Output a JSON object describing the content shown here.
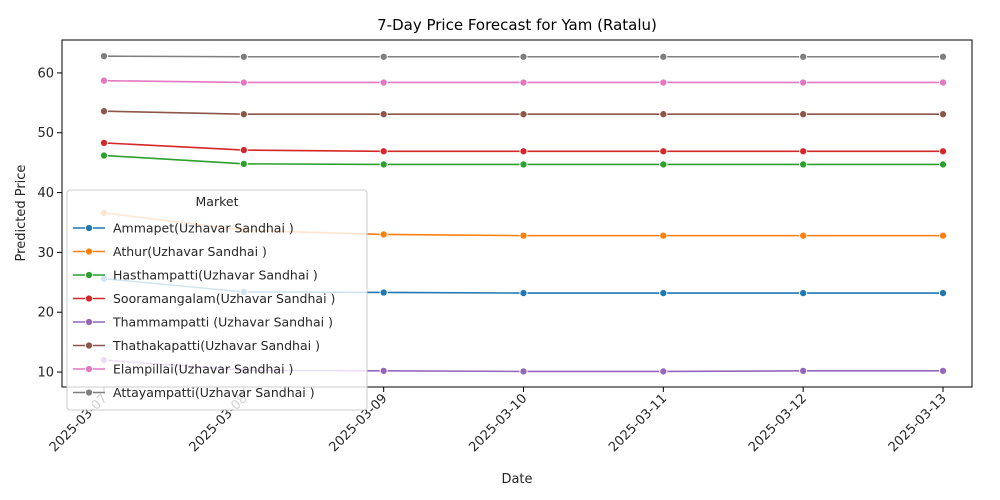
{
  "chart_data": {
    "type": "line",
    "title": "7-Day Price Forecast for Yam (Ratalu)",
    "xlabel": "Date",
    "ylabel": "Predicted Price",
    "x": [
      "2025-03-07",
      "2025-03-08",
      "2025-03-09",
      "2025-03-10",
      "2025-03-11",
      "2025-03-12",
      "2025-03-13"
    ],
    "ylim": [
      7.5,
      65.5
    ],
    "yticks": [
      10,
      20,
      30,
      40,
      50,
      60
    ],
    "grid": false,
    "legend": {
      "title": "Market",
      "placement": "center-left"
    },
    "series": [
      {
        "name": "Ammapet(Uzhavar Sandhai )",
        "color": "#1f77b4",
        "values": [
          25.6,
          23.4,
          23.3,
          23.2,
          23.2,
          23.2,
          23.2
        ]
      },
      {
        "name": "Athur(Uzhavar Sandhai )",
        "color": "#ff7f0e",
        "values": [
          36.6,
          33.7,
          33.0,
          32.8,
          32.8,
          32.8,
          32.8
        ]
      },
      {
        "name": "Hasthampatti(Uzhavar Sandhai )",
        "color": "#2ca02c",
        "values": [
          46.2,
          44.8,
          44.7,
          44.7,
          44.7,
          44.7,
          44.7
        ]
      },
      {
        "name": "Sooramangalam(Uzhavar Sandhai )",
        "color": "#d62728",
        "values": [
          48.3,
          47.1,
          46.9,
          46.9,
          46.9,
          46.9,
          46.9
        ]
      },
      {
        "name": "Thammampatti (Uzhavar Sandhai )",
        "color": "#9467bd",
        "values": [
          12.0,
          10.3,
          10.2,
          10.1,
          10.1,
          10.2,
          10.2
        ]
      },
      {
        "name": "Thathakapatti(Uzhavar Sandhai )",
        "color": "#8c564b",
        "values": [
          53.6,
          53.1,
          53.1,
          53.1,
          53.1,
          53.1,
          53.1
        ]
      },
      {
        "name": "Elampillai(Uzhavar Sandhai )",
        "color": "#e377c2",
        "values": [
          58.7,
          58.4,
          58.4,
          58.4,
          58.4,
          58.4,
          58.4
        ]
      },
      {
        "name": "Attayampatti(Uzhavar Sandhai )",
        "color": "#7f7f7f",
        "values": [
          62.8,
          62.7,
          62.7,
          62.7,
          62.7,
          62.7,
          62.7
        ]
      }
    ]
  }
}
